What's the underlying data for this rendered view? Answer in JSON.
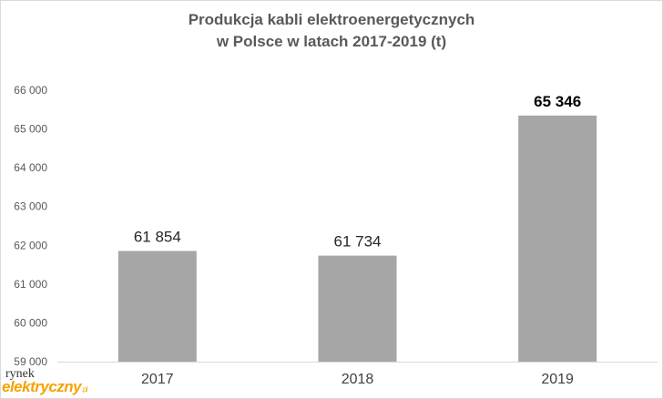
{
  "chart_data": {
    "type": "bar",
    "title": [
      "Produkcja kabli elektroenergetycznych",
      "w Polsce w latach 2017-2019 (t)"
    ],
    "categories": [
      "2017",
      "2018",
      "2019"
    ],
    "values": [
      61854,
      61734,
      65346
    ],
    "data_labels": [
      "61 854",
      "61 734",
      "65 346"
    ],
    "emphasized_index": 2,
    "ylim": [
      59000,
      66000
    ],
    "y_ticks": [
      59000,
      60000,
      61000,
      62000,
      63000,
      64000,
      65000,
      66000
    ],
    "y_tick_labels": [
      "59 000",
      "60 000",
      "61 000",
      "62 000",
      "63 000",
      "64 000",
      "65 000",
      "66 000"
    ],
    "xlabel": "",
    "ylabel": "",
    "grid": false,
    "legend": "none",
    "colors": {
      "bar": "#a6a6a6",
      "axis": "#d9d9d9"
    }
  },
  "logo": {
    "top": "rynek",
    "main": "elektryczny",
    "suffix": ".pl",
    "colors": {
      "main": "#f5a300",
      "top": "#333333"
    }
  }
}
